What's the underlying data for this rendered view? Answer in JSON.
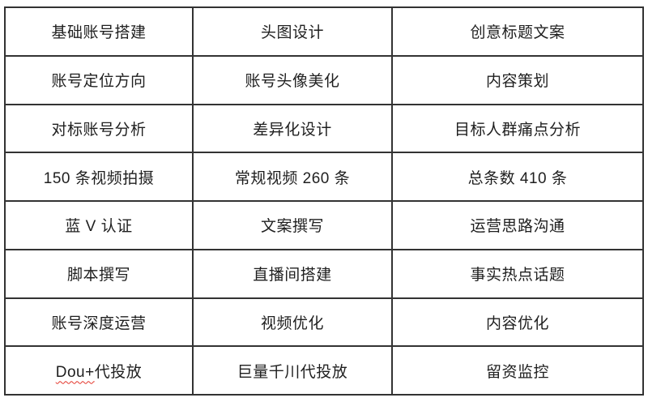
{
  "table": {
    "border_color": "#333333",
    "text_color": "#1f1f1f",
    "spellcheck_underline_color": "#e3342a",
    "columns": 3,
    "rows": [
      [
        "基础账号搭建",
        "头图设计",
        "创意标题文案"
      ],
      [
        "账号定位方向",
        "账号头像美化",
        "内容策划"
      ],
      [
        "对标账号分析",
        "差异化设计",
        "目标人群痛点分析"
      ],
      [
        "150 条视频拍摄",
        "常规视频 260 条",
        "总条数 410 条"
      ],
      [
        "蓝 V 认证",
        "文案撰写",
        "运营思路沟通"
      ],
      [
        "脚本撰写",
        "直播间搭建",
        "事实热点话题"
      ],
      [
        "账号深度运营",
        "视频优化",
        "内容优化"
      ],
      [
        "Dou+代投放",
        "巨量千川代投放",
        "留资监控"
      ]
    ],
    "spellcheck": {
      "row": 7,
      "col": 0,
      "text": "Dou+"
    }
  }
}
